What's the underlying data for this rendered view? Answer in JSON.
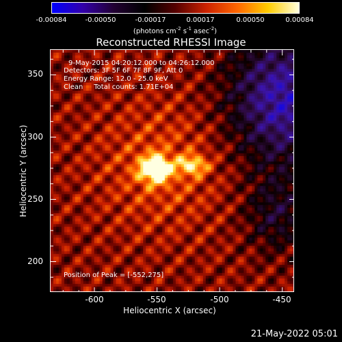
{
  "colorbar": {
    "ticks": [
      "-0.00084",
      "-0.00050",
      "-0.00017",
      "0.00017",
      "0.00050",
      "0.00084"
    ],
    "units_prefix": "(photons cm",
    "units_exp1": "-2",
    "units_mid1": " s",
    "units_exp2": "-1",
    "units_mid2": " asec",
    "units_exp3": "-2",
    "units_suffix": ")",
    "colors": [
      "#0000ff",
      "#3300aa",
      "#220033",
      "#000000",
      "#550000",
      "#cc2200",
      "#ff6600",
      "#ffcc00",
      "#ffffdd"
    ]
  },
  "title": "Reconstructed RHESSI Image",
  "info": {
    "time_range": "9-May-2015 04:20:12.000 to 04:26:12.000",
    "detectors": "Detectors: 3F 5F 6F 7F 8F 9F, Att 0",
    "energy": "Energy Range: 12.0 - 25.0 keV",
    "clean": "Clean     Total counts: 1.71E+04",
    "peak": "Position of Peak = [-552,275]"
  },
  "axes": {
    "xlabel": "Heliocentric X (arcsec)",
    "ylabel": "Heliocentric Y (arcsec)",
    "xlim": [
      -635,
      -440
    ],
    "ylim": [
      175,
      370
    ],
    "xticks": [
      -600,
      -550,
      -500,
      -450
    ],
    "yticks": [
      200,
      250,
      300,
      350
    ]
  },
  "image_data": {
    "peak": [
      -552,
      275
    ],
    "secondary_peak": [
      -522,
      278
    ],
    "negative_region": "upper-right"
  },
  "footer": {
    "date": "21-May-2022 05:01"
  }
}
